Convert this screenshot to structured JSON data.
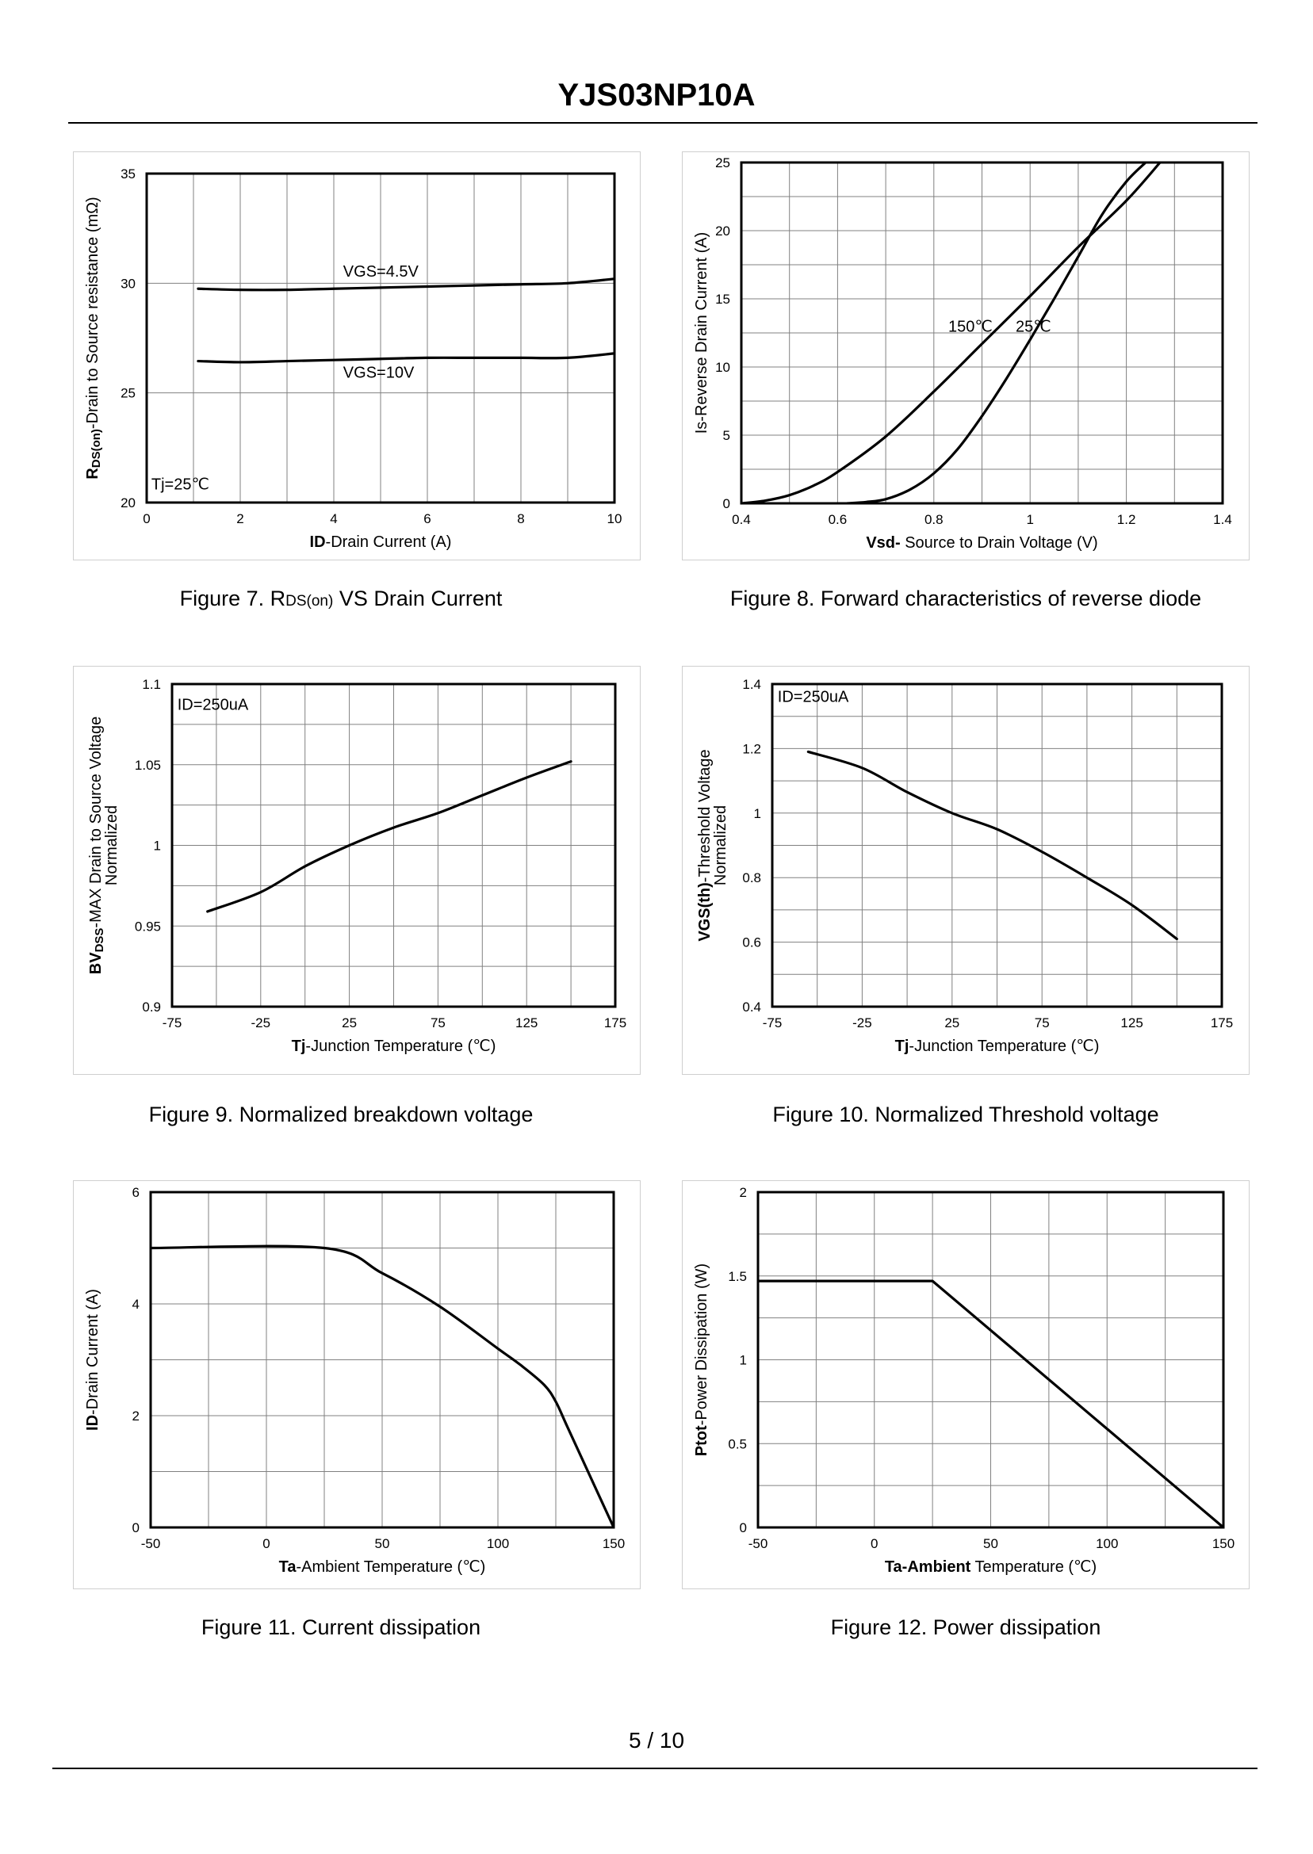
{
  "document": {
    "title": "YJS03NP10A",
    "page_number": "5 / 10"
  },
  "captions": {
    "fig7": {
      "pre": "Figure 7.  R",
      "sub": "DS(on)",
      "post": " VS Drain Current"
    },
    "fig8": "Figure 8.  Forward characteristics of reverse diode",
    "fig9": "Figure 9.  Normalized breakdown voltage",
    "fig10": "Figure 10.  Normalized Threshold voltage",
    "fig11": "Figure 11.  Current dissipation",
    "fig12": "Figure 12.  Power dissipation"
  },
  "chart_data": [
    {
      "id": "fig7",
      "type": "line",
      "xlabel": {
        "bold": "ID",
        "rest": "-Drain Current (A)"
      },
      "ylabel": {
        "bold": "R",
        "bold_sub": "DS(on)",
        "rest": "-Drain to Source resistance (mΩ)"
      },
      "xlim": [
        0,
        10
      ],
      "ylim": [
        20,
        35
      ],
      "xticks": [
        0,
        2,
        4,
        6,
        8,
        10
      ],
      "xtick_labels": [
        "0",
        "2",
        "4",
        "6",
        "8",
        "10"
      ],
      "yticks": [
        20,
        25,
        30,
        35
      ],
      "ytick_labels": [
        "20",
        "25",
        "30",
        "35"
      ],
      "grid_x": [
        1,
        2,
        3,
        4,
        5,
        6,
        7,
        8,
        9
      ],
      "grid_y": [
        25,
        30
      ],
      "series": [
        {
          "name": "VGS=4.5V",
          "x": [
            1.1,
            2,
            3,
            4,
            5,
            6,
            7,
            8,
            9,
            10
          ],
          "y": [
            29.75,
            29.7,
            29.7,
            29.75,
            29.8,
            29.85,
            29.9,
            29.95,
            30.0,
            30.2
          ]
        },
        {
          "name": "VGS=10V",
          "x": [
            1.1,
            2,
            3,
            4,
            5,
            6,
            7,
            8,
            9,
            10
          ],
          "y": [
            26.45,
            26.4,
            26.45,
            26.5,
            26.55,
            26.6,
            26.6,
            26.6,
            26.6,
            26.8
          ]
        }
      ],
      "annotations": [
        {
          "text": "VGS=4.5V",
          "x": 4.2,
          "y": 30.3
        },
        {
          "text": "VGS=10V",
          "x": 4.2,
          "y": 25.7
        },
        {
          "text": "Tj=25℃",
          "x": 0.1,
          "y": 20.6
        }
      ]
    },
    {
      "id": "fig8",
      "type": "line",
      "xlabel": {
        "bold": "Vsd-",
        "rest": " Source to Drain Voltage (V)"
      },
      "ylabel": {
        "bold": "",
        "bold_sub": "",
        "rest": "Is-Reverse  Drain Current (A)"
      },
      "xlim": [
        0.4,
        1.4
      ],
      "ylim": [
        0,
        25
      ],
      "xticks": [
        0.4,
        0.6,
        0.8,
        1.0,
        1.2,
        1.4
      ],
      "xtick_labels": [
        "0.4",
        "0.6",
        "0.8",
        "1",
        "1.2",
        "1.4"
      ],
      "yticks": [
        0,
        5,
        10,
        15,
        20,
        25
      ],
      "ytick_labels": [
        "0",
        "5",
        "10",
        "15",
        "20",
        "25"
      ],
      "grid_x": [
        0.5,
        0.6,
        0.7,
        0.8,
        0.9,
        1.0,
        1.1,
        1.2,
        1.3
      ],
      "grid_y": [
        2.5,
        5,
        7.5,
        10,
        12.5,
        15,
        17.5,
        20,
        22.5
      ],
      "series": [
        {
          "name": "150℃",
          "x": [
            0.4,
            0.45,
            0.5,
            0.55,
            0.6,
            0.7,
            0.8,
            0.9,
            1.0,
            1.1,
            1.2,
            1.27
          ],
          "y": [
            0,
            0.2,
            0.6,
            1.3,
            2.3,
            4.9,
            8.2,
            11.7,
            15.2,
            18.8,
            22.2,
            25
          ]
        },
        {
          "name": "25℃",
          "x": [
            0.62,
            0.66,
            0.7,
            0.75,
            0.8,
            0.85,
            0.9,
            0.95,
            1.0,
            1.05,
            1.1,
            1.15,
            1.2,
            1.24
          ],
          "y": [
            0,
            0.1,
            0.3,
            1.0,
            2.2,
            4.0,
            6.4,
            9.1,
            12.0,
            15.0,
            18.1,
            21.2,
            23.6,
            25
          ]
        }
      ],
      "annotations": [
        {
          "text": "150℃",
          "x": 0.83,
          "y": 12.6
        },
        {
          "text": "25℃",
          "x": 0.97,
          "y": 12.6
        }
      ]
    },
    {
      "id": "fig9",
      "type": "line",
      "xlabel": {
        "bold": "Tj",
        "rest": "-Junction  Temperature (℃)"
      },
      "ylabel": {
        "line1": "BVDSS-MAX Drain to Source Voltage",
        "line2": "Normalized",
        "bold": "BV",
        "bold_sub": "DSS",
        "rest": "-MAX Drain to Source Voltage"
      },
      "xlim": [
        -75,
        175
      ],
      "ylim": [
        0.9,
        1.1
      ],
      "xticks": [
        -75,
        -25,
        25,
        75,
        125,
        175
      ],
      "xtick_labels": [
        "-75",
        "-25",
        "25",
        "75",
        "125",
        "175"
      ],
      "yticks": [
        0.9,
        0.95,
        1.0,
        1.05,
        1.1
      ],
      "ytick_labels": [
        "0.9",
        "0.95",
        "1",
        "1.05",
        "1.1"
      ],
      "grid_x": [
        -50,
        -25,
        0,
        25,
        50,
        75,
        100,
        125,
        150
      ],
      "grid_y": [
        0.925,
        0.95,
        0.975,
        1.0,
        1.025,
        1.05,
        1.075
      ],
      "series": [
        {
          "name": "ID=250uA",
          "x": [
            -55,
            -25,
            0,
            25,
            50,
            75,
            100,
            125,
            150
          ],
          "y": [
            0.959,
            0.971,
            0.987,
            1.0,
            1.011,
            1.02,
            1.031,
            1.042,
            1.052
          ]
        }
      ],
      "annotations": [
        {
          "text": "ID=250uA",
          "x": -72,
          "y": 1.084
        }
      ]
    },
    {
      "id": "fig10",
      "type": "line",
      "xlabel": {
        "bold": "Tj",
        "rest": "-Junction  Temperature (℃)"
      },
      "ylabel": {
        "line1": "VGS(th)-Threshold  Voltage",
        "line2": "Normalized",
        "bold": "VGS(th)",
        "bold_sub": "",
        "rest": "-Threshold  Voltage"
      },
      "xlim": [
        -75,
        175
      ],
      "ylim": [
        0.4,
        1.4
      ],
      "xticks": [
        -75,
        -25,
        25,
        75,
        125,
        175
      ],
      "xtick_labels": [
        "-75",
        "-25",
        "25",
        "75",
        "125",
        "175"
      ],
      "yticks": [
        0.4,
        0.6,
        0.8,
        1.0,
        1.2,
        1.4
      ],
      "ytick_labels": [
        "0.4",
        "0.6",
        "0.8",
        "1",
        "1.2",
        "1.4"
      ],
      "grid_x": [
        -50,
        -25,
        0,
        25,
        50,
        75,
        100,
        125,
        150
      ],
      "grid_y": [
        0.5,
        0.6,
        0.7,
        0.8,
        0.9,
        1.0,
        1.1,
        1.2,
        1.3
      ],
      "series": [
        {
          "name": "ID=250uA",
          "x": [
            -55,
            -25,
            0,
            25,
            50,
            75,
            100,
            125,
            150
          ],
          "y": [
            1.19,
            1.14,
            1.065,
            1.0,
            0.95,
            0.88,
            0.8,
            0.715,
            0.61
          ]
        }
      ],
      "annotations": [
        {
          "text": "ID=250uA",
          "x": -72,
          "y": 1.345
        }
      ]
    },
    {
      "id": "fig11",
      "type": "line",
      "xlabel": {
        "bold": "Ta",
        "rest": "-Ambient  Temperature (℃)"
      },
      "ylabel": {
        "bold": "ID",
        "bold_sub": "",
        "rest": "-Drain Current (A)"
      },
      "xlim": [
        -50,
        150
      ],
      "ylim": [
        0,
        6
      ],
      "xticks": [
        -50,
        0,
        50,
        100,
        150
      ],
      "xtick_labels": [
        "-50",
        "0",
        "50",
        "100",
        "150"
      ],
      "yticks": [
        0,
        2,
        4,
        6
      ],
      "ytick_labels": [
        "0",
        "2",
        "4",
        "6"
      ],
      "grid_x": [
        -25,
        0,
        25,
        50,
        75,
        100,
        125
      ],
      "grid_y": [
        1,
        2,
        3,
        4,
        5
      ],
      "series": [
        {
          "name": "ID",
          "x": [
            -50,
            25,
            50,
            75,
            100,
            110,
            120,
            125,
            130,
            140,
            150
          ],
          "y": [
            5,
            5,
            4.55,
            3.95,
            3.2,
            2.9,
            2.55,
            2.25,
            1.8,
            0.9,
            0
          ]
        }
      ],
      "annotations": []
    },
    {
      "id": "fig12",
      "type": "line",
      "xlabel": {
        "bold": "Ta-Ambient",
        "rest": " Temperature (℃)"
      },
      "ylabel": {
        "bold": "Ptot",
        "bold_sub": "",
        "rest": "-Power Dissipation (W)"
      },
      "xlim": [
        -50,
        150
      ],
      "ylim": [
        0,
        2
      ],
      "xticks": [
        -50,
        0,
        50,
        100,
        150
      ],
      "xtick_labels": [
        "-50",
        "0",
        "50",
        "100",
        "150"
      ],
      "yticks": [
        0,
        0.5,
        1.0,
        1.5,
        2.0
      ],
      "ytick_labels": [
        "0",
        "0.5",
        "1",
        "1.5",
        "2"
      ],
      "grid_x": [
        -25,
        0,
        25,
        50,
        75,
        100,
        125
      ],
      "grid_y": [
        0.25,
        0.5,
        0.75,
        1.0,
        1.25,
        1.5,
        1.75
      ],
      "series": [
        {
          "name": "Ptot",
          "x": [
            -50,
            25,
            150
          ],
          "y": [
            1.47,
            1.47,
            0
          ]
        }
      ],
      "annotations": []
    }
  ]
}
